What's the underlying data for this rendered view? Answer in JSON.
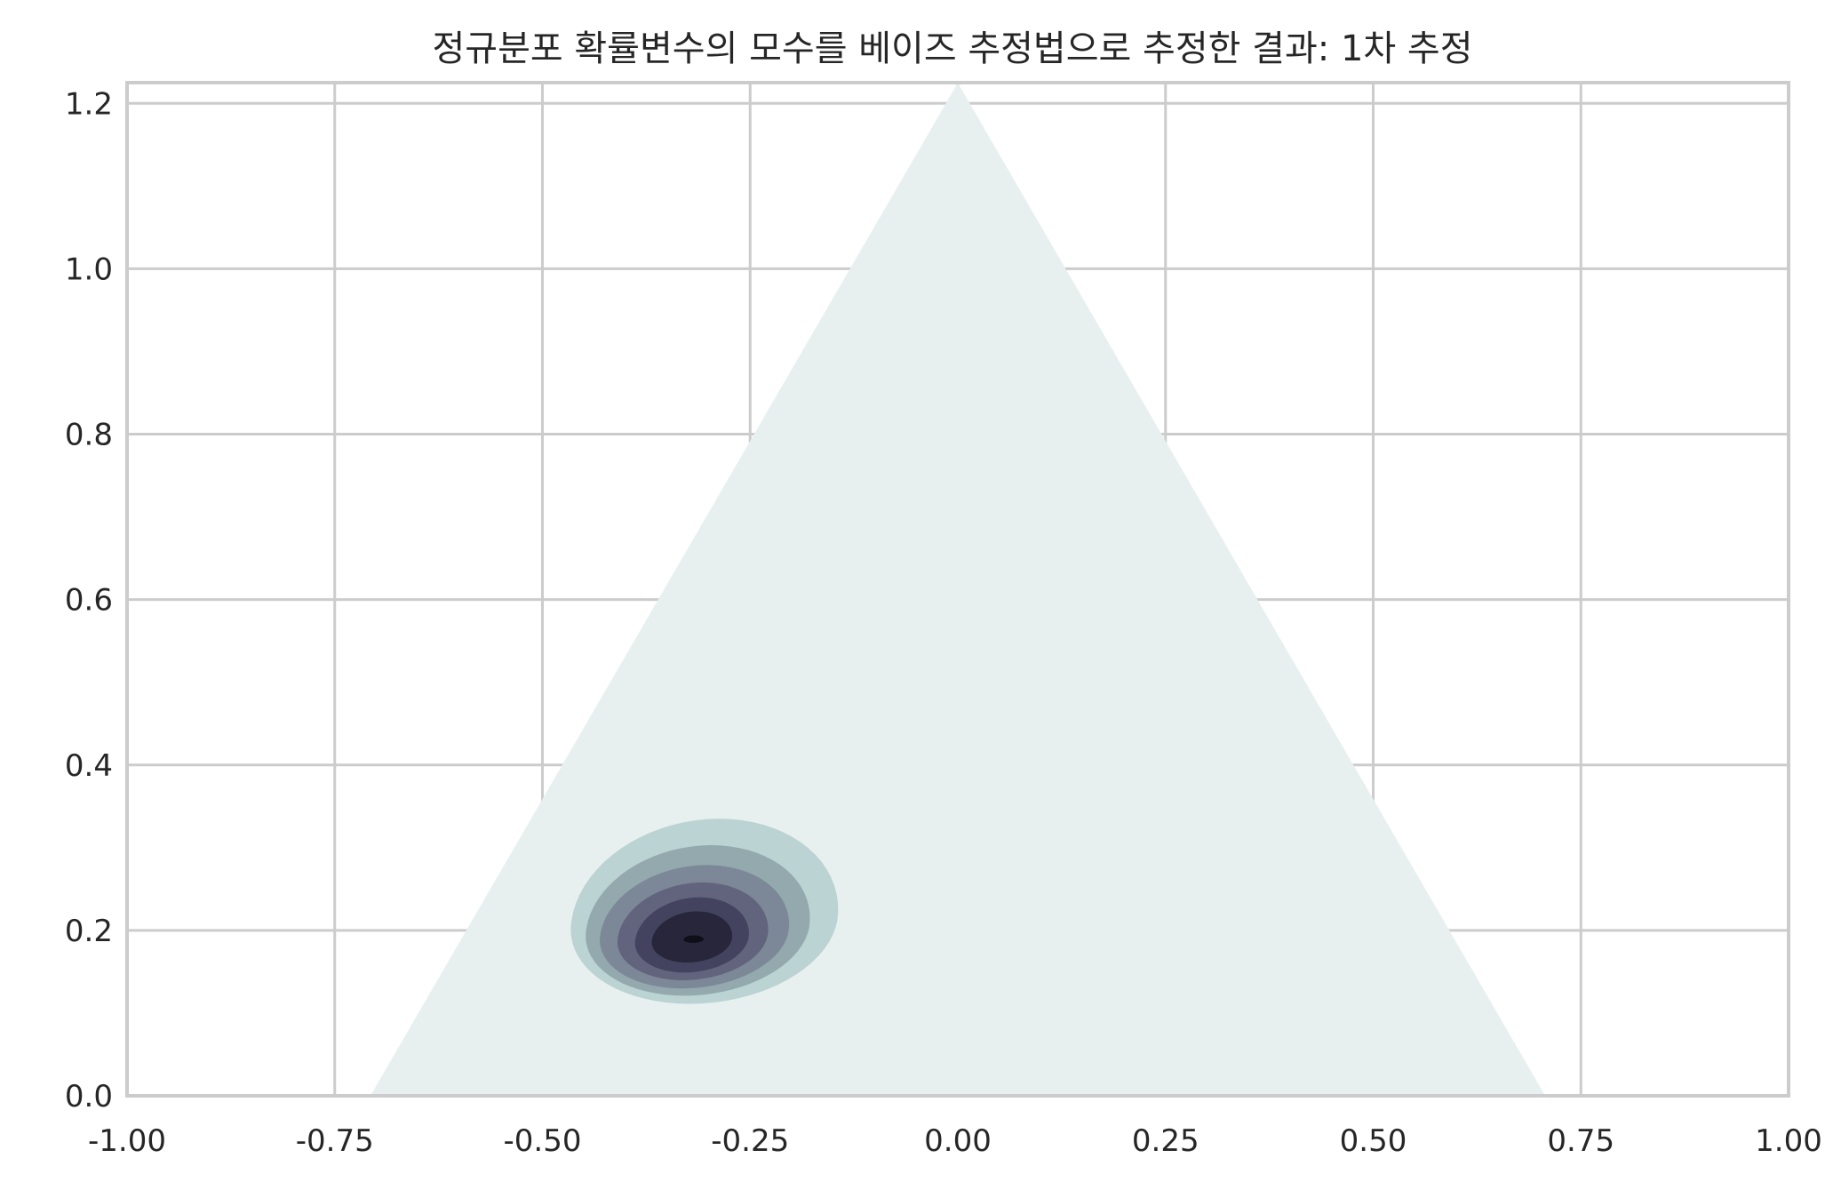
{
  "chart_data": {
    "type": "contour",
    "title": "정규분포 확률변수의 모수를 베이즈 추정법으로 추정한 결과: 1차 추정",
    "xlabel": "",
    "ylabel": "",
    "xlim": [
      -1.0,
      1.0
    ],
    "ylim": [
      0.0,
      1.225
    ],
    "x_ticks": [
      -1.0,
      -0.75,
      -0.5,
      -0.25,
      0.0,
      0.25,
      0.5,
      0.75,
      1.0
    ],
    "x_tick_labels": [
      "-1.00",
      "-0.75",
      "-0.50",
      "-0.25",
      "0.00",
      "0.25",
      "0.50",
      "0.75",
      "1.00"
    ],
    "y_ticks": [
      0.0,
      0.2,
      0.4,
      0.6,
      0.8,
      1.0,
      1.2
    ],
    "y_tick_labels": [
      "0.0",
      "0.2",
      "0.4",
      "0.6",
      "0.8",
      "1.0",
      "1.2"
    ],
    "grid": true,
    "simplex_triangle": {
      "vertices": [
        [
          -0.7071,
          0.0
        ],
        [
          0.7071,
          0.0
        ],
        [
          0.0,
          1.2247
        ]
      ]
    },
    "density_peak": {
      "x": -0.32,
      "y": 0.19
    },
    "contour_levels": [
      {
        "level": 1,
        "color": "#e8f0ef",
        "region": "triangle"
      },
      {
        "level": 2,
        "color": "#bbd3d3",
        "rx": 0.16,
        "ry": 0.123,
        "cx": -0.305,
        "cy": 0.212,
        "tilt": 0.16
      },
      {
        "level": 3,
        "color": "#93a9ad",
        "rx": 0.134,
        "ry": 0.1,
        "cx": -0.313,
        "cy": 0.203,
        "tilt": 0.18
      },
      {
        "level": 4,
        "color": "#7c8897",
        "rx": 0.113,
        "ry": 0.082,
        "cx": -0.317,
        "cy": 0.197,
        "tilt": 0.2
      },
      {
        "level": 5,
        "color": "#62647d",
        "rx": 0.09,
        "ry": 0.065,
        "cx": -0.319,
        "cy": 0.193,
        "tilt": 0.2
      },
      {
        "level": 6,
        "color": "#434360",
        "rx": 0.068,
        "ry": 0.05,
        "cx": -0.32,
        "cy": 0.19,
        "tilt": 0.2
      },
      {
        "level": 7,
        "color": "#27263a",
        "rx": 0.048,
        "ry": 0.034,
        "cx": -0.32,
        "cy": 0.189,
        "tilt": 0.2
      },
      {
        "level": 8,
        "color": "#0f0f1a",
        "rx": 0.012,
        "ry": 0.005,
        "cx": -0.318,
        "cy": 0.189,
        "tilt": 0.1
      }
    ]
  }
}
